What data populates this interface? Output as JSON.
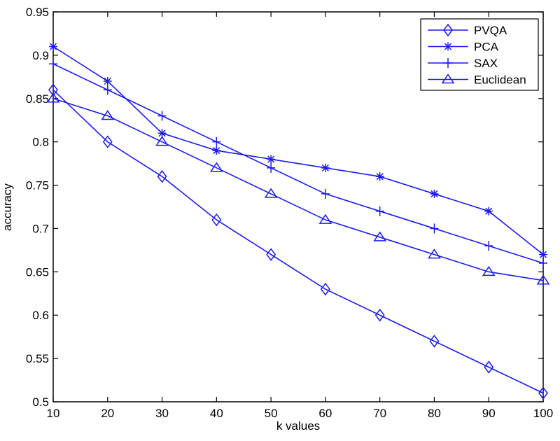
{
  "chart_data": {
    "type": "line",
    "title": "",
    "xlabel": "k values",
    "ylabel": "accuracy",
    "x": [
      10,
      20,
      30,
      40,
      50,
      60,
      70,
      80,
      90,
      100
    ],
    "xlim": [
      10,
      100
    ],
    "ylim": [
      0.5,
      0.95
    ],
    "xticks": [
      "10",
      "20",
      "30",
      "40",
      "50",
      "60",
      "70",
      "80",
      "90",
      "100"
    ],
    "yticks": [
      "0.5",
      "0.55",
      "0.6",
      "0.65",
      "0.7",
      "0.75",
      "0.8",
      "0.85",
      "0.9",
      "0.95"
    ],
    "grid": false,
    "legend_position": "upper right",
    "line_color": "#1a1aef",
    "series": [
      {
        "name": "PVQA",
        "marker": "diamond",
        "values": [
          0.86,
          0.8,
          0.76,
          0.71,
          0.67,
          0.63,
          0.6,
          0.57,
          0.54,
          0.51
        ]
      },
      {
        "name": "PCA",
        "marker": "asterisk",
        "values": [
          0.91,
          0.87,
          0.81,
          0.79,
          0.78,
          0.77,
          0.76,
          0.74,
          0.72,
          0.67
        ]
      },
      {
        "name": "SAX",
        "marker": "plus",
        "values": [
          0.89,
          0.86,
          0.83,
          0.8,
          0.77,
          0.74,
          0.72,
          0.7,
          0.68,
          0.66
        ]
      },
      {
        "name": "Euclidean",
        "marker": "triangle",
        "values": [
          0.85,
          0.83,
          0.8,
          0.77,
          0.74,
          0.71,
          0.69,
          0.67,
          0.65,
          0.64
        ]
      }
    ]
  }
}
